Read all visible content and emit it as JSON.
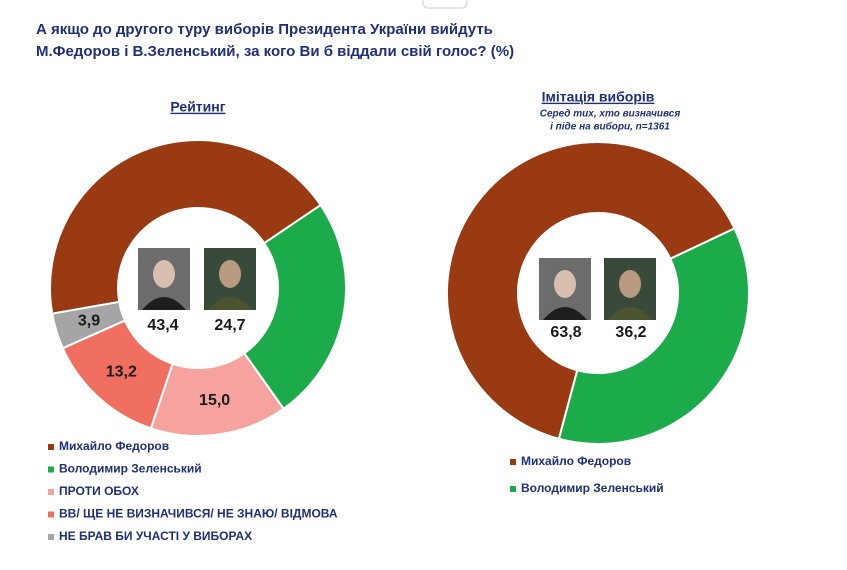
{
  "title": [
    "А якщо до другого туру виборів Президента України вийдуть",
    "М.Федоров і В.Зеленський, за кого Ви б віддали свій голос? (%)"
  ],
  "chart_data": [
    {
      "type": "pie",
      "title": "Рейтинг",
      "categories": [
        "Михайло Федоров",
        "Володимир Зеленський",
        "ПРОТИ ОБОХ",
        "ВВ/ ЩЕ НЕ ВИЗНАЧИВСЯ/ НЕ ЗНАЮ/ ВІДМОВА",
        "НЕ БРАВ БИ УЧАСТІ У ВИБОРАХ"
      ],
      "values": [
        43.4,
        24.7,
        15.0,
        13.2,
        3.9
      ],
      "value_labels": [
        "43,4",
        "24,7",
        "15,0",
        "13,2",
        "3,9"
      ],
      "colors": [
        "#9a3a12",
        "#1bab4b",
        "#f6a3a0",
        "#f16f61",
        "#a5a5a5"
      ]
    },
    {
      "type": "pie",
      "title": "Імітація виборів",
      "subtitle": [
        "Серед тих, хто визначився",
        "і піде на вибори, n=1361"
      ],
      "categories": [
        "Михайло Федоров",
        "Володимир Зеленський"
      ],
      "values": [
        63.8,
        36.2
      ],
      "value_labels": [
        "63,8",
        "36,2"
      ],
      "colors": [
        "#9a3a12",
        "#1bab4b"
      ]
    }
  ]
}
